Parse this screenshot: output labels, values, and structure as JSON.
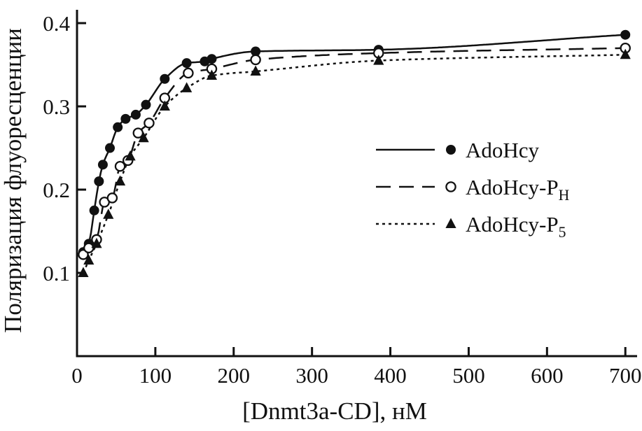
{
  "chart_data": {
    "type": "scatter",
    "title": "",
    "xlabel": "[Dnmt3a-CD], нМ",
    "ylabel": "Поляризация флуоресценции",
    "xlim": [
      0,
      715
    ],
    "ylim": [
      0,
      0.416
    ],
    "x_ticks": [
      0,
      100,
      200,
      300,
      400,
      500,
      600,
      700
    ],
    "y_ticks": [
      0.1,
      0.2,
      0.3,
      0.4
    ],
    "grid": false,
    "legend_position": "middle-right",
    "ink_color": "#111111",
    "background_color": "#ffffff",
    "series": [
      {
        "name": "AdoHcy",
        "label": "AdoHcy",
        "label_sub": "",
        "marker": "filled-circle",
        "line": "solid",
        "points": [
          [
            8,
            0.125
          ],
          [
            15,
            0.135
          ],
          [
            22,
            0.175
          ],
          [
            28,
            0.21
          ],
          [
            33,
            0.23
          ],
          [
            42,
            0.25
          ],
          [
            52,
            0.275
          ],
          [
            62,
            0.285
          ],
          [
            75,
            0.29
          ],
          [
            88,
            0.302
          ],
          [
            112,
            0.333
          ],
          [
            140,
            0.352
          ],
          [
            163,
            0.354
          ],
          [
            172,
            0.357
          ],
          [
            228,
            0.366
          ],
          [
            385,
            0.368
          ],
          [
            700,
            0.386
          ]
        ]
      },
      {
        "name": "AdoHcy-PH",
        "label": "AdoHcy-P",
        "label_sub": "H",
        "marker": "open-circle",
        "line": "dashed",
        "points": [
          [
            8,
            0.122
          ],
          [
            15,
            0.13
          ],
          [
            25,
            0.14
          ],
          [
            35,
            0.185
          ],
          [
            45,
            0.19
          ],
          [
            55,
            0.228
          ],
          [
            65,
            0.235
          ],
          [
            78,
            0.268
          ],
          [
            92,
            0.28
          ],
          [
            112,
            0.31
          ],
          [
            142,
            0.34
          ],
          [
            172,
            0.345
          ],
          [
            228,
            0.356
          ],
          [
            385,
            0.364
          ],
          [
            700,
            0.37
          ]
        ]
      },
      {
        "name": "AdoHcy-P5",
        "label": "AdoHcy-P",
        "label_sub": "5",
        "marker": "filled-triangle",
        "line": "dotted",
        "points": [
          [
            8,
            0.1
          ],
          [
            15,
            0.115
          ],
          [
            25,
            0.135
          ],
          [
            40,
            0.17
          ],
          [
            55,
            0.21
          ],
          [
            68,
            0.24
          ],
          [
            85,
            0.262
          ],
          [
            112,
            0.3
          ],
          [
            140,
            0.322
          ],
          [
            172,
            0.337
          ],
          [
            228,
            0.342
          ],
          [
            385,
            0.355
          ],
          [
            700,
            0.362
          ]
        ]
      }
    ]
  }
}
